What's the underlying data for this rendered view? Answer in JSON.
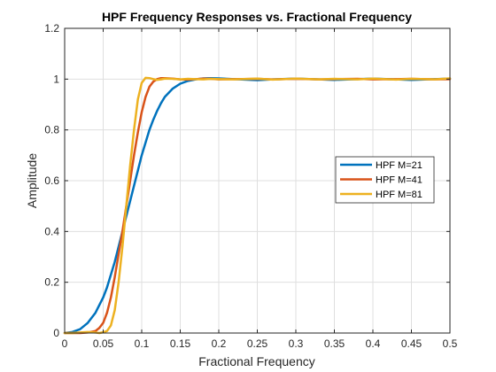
{
  "chart_data": {
    "type": "line",
    "title": "HPF Frequency Responses vs. Fractional Frequency",
    "xlabel": "Fractional Frequency",
    "ylabel": "Amplitude",
    "xlim": [
      0,
      0.5
    ],
    "ylim": [
      0,
      1.2
    ],
    "xticks": [
      "0",
      "0.05",
      "0.1",
      "0.15",
      "0.2",
      "0.25",
      "0.3",
      "0.35",
      "0.4",
      "0.45",
      "0.5"
    ],
    "yticks": [
      "0",
      "0.2",
      "0.4",
      "0.6",
      "0.8",
      "1",
      "1.2"
    ],
    "grid": true,
    "legend_position": "right",
    "x": [
      0,
      0.01,
      0.02,
      0.03,
      0.04,
      0.045,
      0.05,
      0.055,
      0.06,
      0.065,
      0.07,
      0.075,
      0.08,
      0.085,
      0.09,
      0.095,
      0.1,
      0.105,
      0.11,
      0.115,
      0.12,
      0.125,
      0.13,
      0.14,
      0.15,
      0.16,
      0.17,
      0.18,
      0.19,
      0.2,
      0.22,
      0.25,
      0.27,
      0.3,
      0.33,
      0.35,
      0.38,
      0.4,
      0.43,
      0.45,
      0.48,
      0.5
    ],
    "series": [
      {
        "name": "HPF M=21",
        "color": "#0072BD",
        "values": [
          0,
          0.004,
          0.015,
          0.04,
          0.08,
          0.11,
          0.14,
          0.18,
          0.23,
          0.28,
          0.34,
          0.4,
          0.46,
          0.52,
          0.58,
          0.64,
          0.7,
          0.75,
          0.8,
          0.84,
          0.875,
          0.905,
          0.93,
          0.962,
          0.982,
          0.993,
          0.999,
          1.003,
          1.004,
          1.003,
          1.0,
          0.996,
          0.999,
          1.002,
          0.999,
          0.997,
          1.0,
          1.002,
          0.999,
          0.997,
          1.0,
          1.002
        ]
      },
      {
        "name": "HPF M=41",
        "color": "#D95319",
        "values": [
          0,
          0,
          0,
          0.002,
          0.008,
          0.02,
          0.04,
          0.08,
          0.14,
          0.22,
          0.31,
          0.4,
          0.5,
          0.6,
          0.7,
          0.79,
          0.87,
          0.93,
          0.97,
          0.99,
          1.0,
          1.004,
          1.004,
          1.002,
          0.999,
          0.998,
          1.0,
          1.002,
          1.001,
          0.999,
          1.0,
          1.001,
          0.999,
          1.001,
          0.999,
          1.0,
          1.001,
          0.999,
          1.0,
          1.001,
          0.999,
          1.0
        ]
      },
      {
        "name": "HPF M=81",
        "color": "#EDB120",
        "values": [
          0,
          0,
          0.002,
          0.004,
          0.002,
          0.0,
          0.003,
          0.008,
          0.03,
          0.09,
          0.2,
          0.34,
          0.5,
          0.66,
          0.8,
          0.92,
          0.985,
          1.005,
          1.004,
          1.0,
          0.997,
          0.999,
          1.002,
          1.001,
          0.999,
          1.001,
          1.0,
          0.999,
          1.001,
          1.0,
          0.999,
          1.002,
          0.998,
          1.002,
          0.999,
          1.001,
          0.999,
          1.002,
          0.998,
          1.001,
          0.999,
          1.003
        ]
      }
    ]
  }
}
